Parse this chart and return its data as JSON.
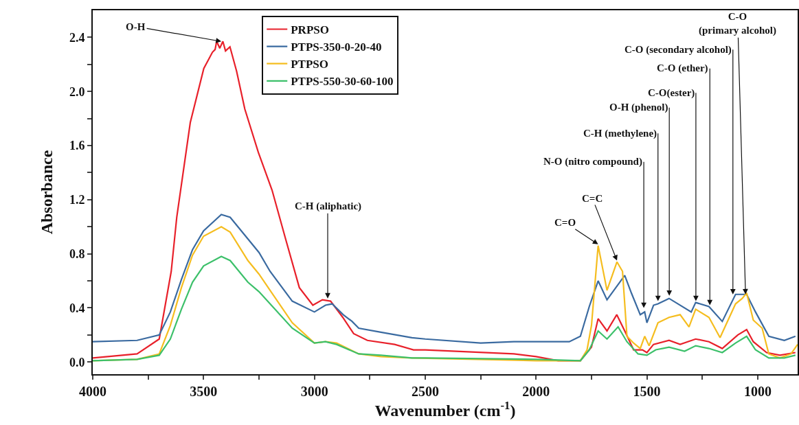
{
  "chart_data": {
    "type": "line",
    "xlabel": "Wavenumber (cm$^{-1}$)",
    "ylabel": "Absorbance",
    "xlim": [
      4000,
      820
    ],
    "ylim": [
      -0.09,
      2.6
    ],
    "xticks": [
      4000,
      {
        "value": 3750,
        "label": null
      },
      3500,
      {
        "value": 3250,
        "label": null
      },
      3000,
      {
        "value": 2750,
        "label": null
      },
      2500,
      {
        "value": 2250,
        "label": null
      },
      2000,
      {
        "value": 1750,
        "label": null
      },
      1500,
      {
        "value": 1250,
        "label": null
      },
      1000
    ],
    "yticks": [
      {
        "value": 0,
        "label": "0.0"
      },
      {
        "value": 0.2,
        "label": null
      },
      0.4,
      {
        "value": 0.6,
        "label": null
      },
      0.8,
      {
        "value": 1.0,
        "label": null
      },
      1.2,
      {
        "value": 1.4,
        "label": null
      },
      1.6,
      {
        "value": 1.8,
        "label": null
      },
      {
        "value": 2.0,
        "label": "2.0"
      },
      {
        "value": 2.2,
        "label": null
      },
      2.4
    ],
    "grid": false,
    "legend": "top",
    "line_style": "solid",
    "marker": "none",
    "series": [
      {
        "name": "PRPSO",
        "color": "#e8202a",
        "x": [
          4000,
          3800,
          3700,
          3646,
          3621,
          3560,
          3499,
          3460,
          3448,
          3441,
          3427,
          3413,
          3401,
          3381,
          3351,
          3314,
          3253,
          3191,
          3130,
          3068,
          3007,
          2964,
          2927,
          2872,
          2823,
          2761,
          2638,
          2553,
          2500,
          2100,
          2000,
          1900,
          1800,
          1750,
          1720,
          1680,
          1636,
          1600,
          1560,
          1520,
          1500,
          1470,
          1400,
          1350,
          1280,
          1220,
          1160,
          1090,
          1050,
          1020,
          960,
          900,
          830
        ],
        "values": [
          0.03,
          0.06,
          0.17,
          0.67,
          1.07,
          1.77,
          2.17,
          2.29,
          2.31,
          2.37,
          2.32,
          2.37,
          2.3,
          2.33,
          2.15,
          1.87,
          1.55,
          1.27,
          0.91,
          0.55,
          0.42,
          0.46,
          0.45,
          0.33,
          0.21,
          0.16,
          0.13,
          0.09,
          0.09,
          0.06,
          0.04,
          0.01,
          0.01,
          0.11,
          0.32,
          0.23,
          0.35,
          0.23,
          0.09,
          0.09,
          0.07,
          0.13,
          0.16,
          0.13,
          0.17,
          0.15,
          0.1,
          0.2,
          0.24,
          0.15,
          0.07,
          0.05,
          0.07
        ]
      },
      {
        "name": "PTPS-350-0-20-40",
        "color": "#3a6aa0",
        "x": [
          4000,
          3800,
          3700,
          3650,
          3600,
          3550,
          3500,
          3420,
          3380,
          3300,
          3250,
          3200,
          3100,
          3000,
          2950,
          2920,
          2870,
          2830,
          2800,
          2700,
          2560,
          2500,
          2250,
          2100,
          1850,
          1800,
          1760,
          1720,
          1680,
          1600,
          1570,
          1530,
          1510,
          1500,
          1470,
          1450,
          1400,
          1300,
          1280,
          1220,
          1160,
          1100,
          1050,
          1010,
          950,
          880,
          830
        ],
        "values": [
          0.15,
          0.16,
          0.2,
          0.37,
          0.61,
          0.83,
          0.97,
          1.09,
          1.07,
          0.91,
          0.81,
          0.67,
          0.45,
          0.37,
          0.42,
          0.43,
          0.35,
          0.3,
          0.25,
          0.22,
          0.18,
          0.17,
          0.14,
          0.15,
          0.15,
          0.19,
          0.41,
          0.6,
          0.46,
          0.64,
          0.51,
          0.35,
          0.37,
          0.29,
          0.42,
          0.43,
          0.47,
          0.37,
          0.44,
          0.41,
          0.3,
          0.5,
          0.5,
          0.37,
          0.19,
          0.16,
          0.19
        ]
      },
      {
        "name": "PTPSO",
        "color": "#f5bd1f",
        "x": [
          4000,
          3800,
          3700,
          3650,
          3600,
          3550,
          3500,
          3420,
          3380,
          3300,
          3250,
          3200,
          3100,
          3000,
          2950,
          2900,
          2800,
          2700,
          2560,
          2000,
          1800,
          1770,
          1750,
          1720,
          1680,
          1635,
          1610,
          1590,
          1560,
          1530,
          1510,
          1490,
          1450,
          1400,
          1350,
          1310,
          1280,
          1220,
          1170,
          1100,
          1070,
          1050,
          1020,
          980,
          950,
          900,
          850,
          820
        ],
        "values": [
          0.01,
          0.02,
          0.06,
          0.27,
          0.55,
          0.79,
          0.93,
          1.0,
          0.96,
          0.75,
          0.65,
          0.53,
          0.29,
          0.14,
          0.15,
          0.14,
          0.06,
          0.04,
          0.03,
          0.01,
          0.01,
          0.09,
          0.27,
          0.86,
          0.53,
          0.74,
          0.67,
          0.19,
          0.14,
          0.1,
          0.19,
          0.12,
          0.29,
          0.33,
          0.35,
          0.26,
          0.39,
          0.33,
          0.18,
          0.43,
          0.47,
          0.51,
          0.31,
          0.25,
          0.06,
          0.03,
          0.06,
          0.13
        ]
      },
      {
        "name": "PTPS-550-30-60-100",
        "color": "#3cc06a",
        "x": [
          4000,
          3800,
          3700,
          3650,
          3600,
          3550,
          3500,
          3420,
          3380,
          3300,
          3250,
          3200,
          3100,
          3000,
          2950,
          2900,
          2800,
          2700,
          2560,
          2500,
          2000,
          1800,
          1760,
          1720,
          1680,
          1630,
          1590,
          1540,
          1500,
          1460,
          1400,
          1330,
          1280,
          1220,
          1160,
          1100,
          1050,
          1010,
          950,
          880,
          830
        ],
        "values": [
          0.01,
          0.02,
          0.05,
          0.17,
          0.39,
          0.59,
          0.71,
          0.78,
          0.75,
          0.59,
          0.52,
          0.43,
          0.25,
          0.14,
          0.15,
          0.13,
          0.06,
          0.05,
          0.03,
          0.03,
          0.02,
          0.01,
          0.09,
          0.23,
          0.17,
          0.26,
          0.15,
          0.06,
          0.05,
          0.09,
          0.11,
          0.08,
          0.12,
          0.1,
          0.07,
          0.14,
          0.19,
          0.09,
          0.03,
          0.03,
          0.05
        ]
      }
    ],
    "annotations": [
      {
        "text": "O-H",
        "x": 3420,
        "y": 2.37
      },
      {
        "text": "C-H (aliphatic)",
        "x": 2940,
        "y": 0.47
      },
      {
        "text": "C=O",
        "x": 1720,
        "y": 0.87
      },
      {
        "text": "C=C",
        "x": 1635,
        "y": 0.75
      },
      {
        "text": "N-O (nitro compound)",
        "x": 1514,
        "y": 0.4
      },
      {
        "text": "C-H (methylene)",
        "x": 1450,
        "y": 0.45
      },
      {
        "text": "O-H (phenol)",
        "x": 1399,
        "y": 0.49
      },
      {
        "text": "C-O(ester)",
        "x": 1279,
        "y": 0.45
      },
      {
        "text": "C-O (ether)",
        "x": 1216,
        "y": 0.42
      },
      {
        "text": "C-O (secondary alcohol)",
        "x": 1112,
        "y": 0.5
      },
      {
        "text": "C-O\n(primary alcohol)",
        "x": 1055,
        "y": 0.5
      }
    ]
  }
}
